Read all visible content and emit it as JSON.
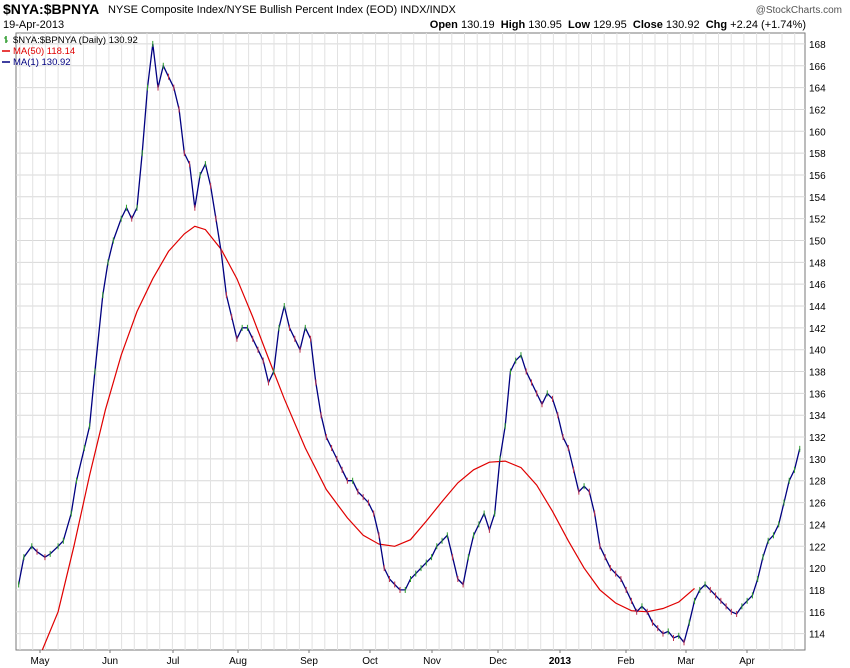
{
  "header": {
    "symbol": "$NYA:$BPNYA",
    "description": "NYSE Composite Index/NYSE Bullish Percent Index (EOD)  INDX/INDX",
    "date": "19-Apr-2013",
    "watermark": "@StockCharts.com",
    "quote": {
      "open_label": "Open",
      "open": "130.19",
      "high_label": "High",
      "high": "130.95",
      "low_label": "Low",
      "low": "129.95",
      "close_label": "Close",
      "close": "130.92",
      "chg_label": "Chg",
      "chg": "+2.24 (+1.74%)"
    }
  },
  "legend": [
    {
      "text": "$NYA:$BPNYA (Daily) 130.92",
      "color": "#2b9a2b",
      "icon": "ohlc-bar-icon"
    },
    {
      "text": "MA(50) 118.14",
      "color": "#e00000",
      "icon": "line-icon"
    },
    {
      "text": "MA(1) 130.92",
      "color": "#000080",
      "icon": "line-icon"
    }
  ],
  "chart_data": {
    "type": "line",
    "y_axis_side": "right",
    "ylim": [
      112.5,
      169
    ],
    "y_ticks": [
      114,
      116,
      118,
      120,
      122,
      124,
      126,
      128,
      130,
      132,
      134,
      136,
      138,
      140,
      142,
      144,
      146,
      148,
      150,
      152,
      154,
      156,
      158,
      160,
      162,
      164,
      166,
      168
    ],
    "x_labels": [
      "May",
      "Jun",
      "Jul",
      "Aug",
      "Sep",
      "Oct",
      "Nov",
      "Dec",
      "2013",
      "Feb",
      "Mar",
      "Apr"
    ],
    "x_label_bold": "2013",
    "grid": true,
    "series": [
      {
        "name": "MA(1)",
        "color": "#000080",
        "values": [
          [
            1,
            118.5
          ],
          [
            3,
            121
          ],
          [
            6,
            122
          ],
          [
            8,
            121.5
          ],
          [
            11,
            121
          ],
          [
            13,
            121.3
          ],
          [
            16,
            122
          ],
          [
            18,
            122.5
          ],
          [
            21,
            125
          ],
          [
            23,
            128
          ],
          [
            26,
            131
          ],
          [
            28,
            133
          ],
          [
            30,
            138
          ],
          [
            33,
            145
          ],
          [
            35,
            148
          ],
          [
            37,
            150
          ],
          [
            40,
            152
          ],
          [
            42,
            153
          ],
          [
            44,
            152
          ],
          [
            46,
            153
          ],
          [
            48,
            158
          ],
          [
            50,
            164
          ],
          [
            52,
            168
          ],
          [
            54,
            164
          ],
          [
            56,
            166
          ],
          [
            58,
            165
          ],
          [
            60,
            164
          ],
          [
            62,
            162
          ],
          [
            64,
            158
          ],
          [
            66,
            157
          ],
          [
            68,
            153
          ],
          [
            70,
            156
          ],
          [
            72,
            157
          ],
          [
            74,
            155
          ],
          [
            76,
            152
          ],
          [
            78,
            149
          ],
          [
            80,
            145
          ],
          [
            82,
            143
          ],
          [
            84,
            141
          ],
          [
            86,
            142
          ],
          [
            88,
            142
          ],
          [
            90,
            141
          ],
          [
            92,
            140
          ],
          [
            94,
            139
          ],
          [
            96,
            137
          ],
          [
            98,
            138
          ],
          [
            100,
            142
          ],
          [
            102,
            144
          ],
          [
            104,
            142
          ],
          [
            106,
            141
          ],
          [
            108,
            140
          ],
          [
            110,
            142
          ],
          [
            112,
            141
          ],
          [
            114,
            137
          ],
          [
            116,
            134
          ],
          [
            118,
            132
          ],
          [
            120,
            131
          ],
          [
            122,
            130
          ],
          [
            124,
            129
          ],
          [
            126,
            128
          ],
          [
            128,
            128
          ],
          [
            130,
            127
          ],
          [
            132,
            126.5
          ],
          [
            134,
            126
          ],
          [
            136,
            125
          ],
          [
            138,
            123
          ],
          [
            140,
            120
          ],
          [
            142,
            119
          ],
          [
            144,
            118.5
          ],
          [
            146,
            118
          ],
          [
            148,
            118
          ],
          [
            150,
            119
          ],
          [
            152,
            119.5
          ],
          [
            154,
            120
          ],
          [
            156,
            120.5
          ],
          [
            158,
            121
          ],
          [
            160,
            122
          ],
          [
            162,
            122.5
          ],
          [
            164,
            123
          ],
          [
            166,
            121
          ],
          [
            168,
            119
          ],
          [
            170,
            118.5
          ],
          [
            172,
            121
          ],
          [
            174,
            123
          ],
          [
            176,
            124
          ],
          [
            178,
            125
          ],
          [
            180,
            123.5
          ],
          [
            182,
            125
          ],
          [
            184,
            130
          ],
          [
            186,
            133
          ],
          [
            188,
            138
          ],
          [
            190,
            139
          ],
          [
            192,
            139.5
          ],
          [
            194,
            138
          ],
          [
            196,
            137
          ],
          [
            198,
            136
          ],
          [
            200,
            135
          ],
          [
            202,
            136
          ],
          [
            204,
            135.5
          ],
          [
            206,
            134
          ],
          [
            208,
            132
          ],
          [
            210,
            131
          ],
          [
            212,
            129
          ],
          [
            214,
            127
          ],
          [
            216,
            127.5
          ],
          [
            218,
            127
          ],
          [
            220,
            125
          ],
          [
            222,
            122
          ],
          [
            224,
            121
          ],
          [
            226,
            120
          ],
          [
            228,
            119.5
          ],
          [
            230,
            119
          ],
          [
            232,
            118
          ],
          [
            234,
            117
          ],
          [
            236,
            116
          ],
          [
            238,
            116.5
          ],
          [
            240,
            116
          ],
          [
            242,
            115
          ],
          [
            244,
            114.5
          ],
          [
            246,
            114
          ],
          [
            248,
            114.2
          ],
          [
            250,
            113.6
          ],
          [
            252,
            113.8
          ],
          [
            254,
            113.2
          ],
          [
            256,
            115
          ],
          [
            258,
            117
          ],
          [
            260,
            118
          ],
          [
            262,
            118.5
          ],
          [
            264,
            118
          ],
          [
            266,
            117.5
          ],
          [
            268,
            117
          ],
          [
            270,
            116.5
          ],
          [
            272,
            116
          ],
          [
            274,
            115.8
          ],
          [
            276,
            116.5
          ],
          [
            278,
            117
          ],
          [
            280,
            117.5
          ],
          [
            282,
            119
          ],
          [
            284,
            121
          ],
          [
            286,
            122.5
          ],
          [
            288,
            123
          ],
          [
            290,
            124
          ],
          [
            292,
            126
          ],
          [
            294,
            128
          ],
          [
            296,
            129
          ],
          [
            298,
            130.92
          ]
        ]
      },
      {
        "name": "MA(50)",
        "color": "#e00000",
        "values": [
          [
            10,
            112.5
          ],
          [
            16,
            116
          ],
          [
            22,
            122
          ],
          [
            28,
            128.5
          ],
          [
            34,
            134.5
          ],
          [
            40,
            139.5
          ],
          [
            46,
            143.5
          ],
          [
            52,
            146.5
          ],
          [
            58,
            149
          ],
          [
            64,
            150.6
          ],
          [
            68,
            151.3
          ],
          [
            72,
            151
          ],
          [
            78,
            149.2
          ],
          [
            84,
            146.5
          ],
          [
            90,
            143
          ],
          [
            96,
            139.2
          ],
          [
            102,
            135.5
          ],
          [
            110,
            131
          ],
          [
            118,
            127.2
          ],
          [
            126,
            124.6
          ],
          [
            132,
            123
          ],
          [
            138,
            122.2
          ],
          [
            144,
            122
          ],
          [
            150,
            122.6
          ],
          [
            156,
            124.3
          ],
          [
            162,
            126.1
          ],
          [
            168,
            127.8
          ],
          [
            174,
            129
          ],
          [
            180,
            129.7
          ],
          [
            186,
            129.8
          ],
          [
            192,
            129.2
          ],
          [
            198,
            127.6
          ],
          [
            204,
            125.2
          ],
          [
            210,
            122.5
          ],
          [
            216,
            120
          ],
          [
            222,
            118
          ],
          [
            228,
            116.8
          ],
          [
            234,
            116.1
          ],
          [
            240,
            116
          ],
          [
            246,
            116.3
          ],
          [
            252,
            116.9
          ],
          [
            258,
            118.14
          ]
        ]
      }
    ]
  }
}
